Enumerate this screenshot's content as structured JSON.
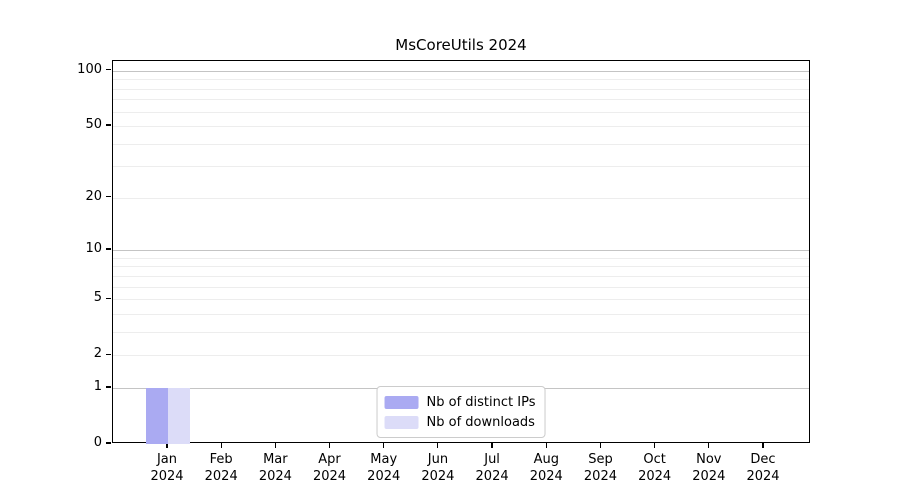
{
  "title": "MsCoreUtils 2024",
  "chart_data": {
    "type": "bar",
    "title": "MsCoreUtils 2024",
    "categories": [
      "Jan 2024",
      "Feb 2024",
      "Mar 2024",
      "Apr 2024",
      "May 2024",
      "Jun 2024",
      "Jul 2024",
      "Aug 2024",
      "Sep 2024",
      "Oct 2024",
      "Nov 2024",
      "Dec 2024"
    ],
    "series": [
      {
        "name": "Nb of distinct IPs",
        "color": "#aaaaf2",
        "values": [
          1,
          0,
          0,
          0,
          0,
          0,
          0,
          0,
          0,
          0,
          0,
          0
        ]
      },
      {
        "name": "Nb of downloads",
        "color": "#dcdcf8",
        "values": [
          1,
          0,
          0,
          0,
          0,
          0,
          0,
          0,
          0,
          0,
          0,
          0
        ]
      }
    ],
    "xlabel": "",
    "ylabel": "",
    "yscale": "log1p",
    "ylim": [
      0,
      113
    ],
    "yticks": [
      0,
      1,
      2,
      5,
      10,
      20,
      50,
      100
    ],
    "grid_major": [
      1,
      10,
      100
    ],
    "grid_minor": [
      2,
      3,
      4,
      5,
      6,
      7,
      8,
      9,
      20,
      30,
      40,
      50,
      60,
      70,
      80,
      90
    ],
    "grid": "on",
    "legend_position": "lower center"
  },
  "colors": {
    "grid_major": "#c4c4c4",
    "grid_minor": "#ededed",
    "axis": "#000000",
    "legend_border": "#cccccc"
  }
}
